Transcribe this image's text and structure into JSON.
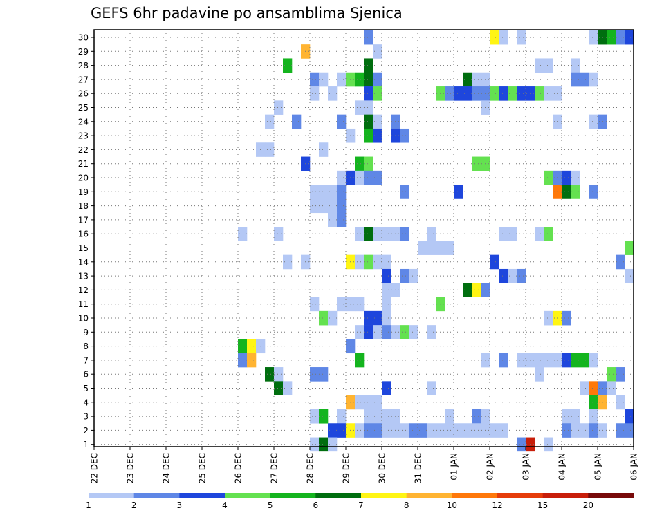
{
  "chart_data": {
    "type": "heatmap",
    "title": "GEFS 6hr padavine po ansamblima Sjenica",
    "xlabel": "",
    "ylabel": "",
    "x_tick_labels": [
      "22 DEC",
      "23 DEC",
      "24 DEC",
      "25 DEC",
      "26 DEC",
      "27 DEC",
      "28 DEC",
      "29 DEC",
      "30 DEC",
      "31 DEC",
      "01 JAN",
      "02 JAN",
      "03 JAN",
      "04 JAN",
      "05 JAN",
      "06 JAN"
    ],
    "y_tick_labels": [
      "1",
      "2",
      "3",
      "4",
      "5",
      "6",
      "7",
      "8",
      "9",
      "10",
      "11",
      "12",
      "13",
      "14",
      "15",
      "16",
      "17",
      "18",
      "19",
      "20",
      "21",
      "22",
      "23",
      "24",
      "25",
      "26",
      "27",
      "28",
      "29",
      "30"
    ],
    "x_range_days": [
      0,
      15
    ],
    "steps_per_day": 4,
    "members": 30,
    "grid": true,
    "legend_position": "bottom",
    "colorbar": {
      "labels": [
        "1",
        "2",
        "3",
        "4",
        "5",
        "6",
        "7",
        "8",
        "10",
        "12",
        "15",
        "20"
      ],
      "colors": [
        "#b4c8f5",
        "#5f87e6",
        "#1e46dc",
        "#64e150",
        "#14b41e",
        "#006e0f",
        "#fff514",
        "#ffb432",
        "#ff780a",
        "#e63c0a",
        "#c81e0a",
        "#780a0a"
      ]
    },
    "precip_cells": [
      {
        "member": 30,
        "cells": [
          [
            30,
            2
          ],
          [
            44,
            7
          ],
          [
            45,
            1
          ],
          [
            47,
            1
          ],
          [
            55,
            1
          ],
          [
            56,
            6
          ],
          [
            57,
            5
          ],
          [
            58,
            2
          ],
          [
            59,
            3
          ]
        ]
      },
      {
        "member": 29,
        "cells": [
          [
            23,
            8
          ],
          [
            31,
            1
          ]
        ]
      },
      {
        "member": 28,
        "cells": [
          [
            21,
            5
          ],
          [
            30,
            6
          ],
          [
            49,
            1
          ],
          [
            50,
            1
          ],
          [
            53,
            1
          ]
        ]
      },
      {
        "member": 27,
        "cells": [
          [
            24,
            2
          ],
          [
            25,
            1
          ],
          [
            27,
            1
          ],
          [
            28,
            4
          ],
          [
            29,
            5
          ],
          [
            30,
            6
          ],
          [
            31,
            2
          ],
          [
            41,
            6
          ],
          [
            42,
            1
          ],
          [
            43,
            1
          ],
          [
            53,
            2
          ],
          [
            54,
            2
          ],
          [
            55,
            1
          ]
        ]
      },
      {
        "member": 26,
        "cells": [
          [
            24,
            1
          ],
          [
            26,
            1
          ],
          [
            30,
            3
          ],
          [
            31,
            4
          ],
          [
            38,
            4
          ],
          [
            39,
            2
          ],
          [
            40,
            3
          ],
          [
            41,
            3
          ],
          [
            42,
            2
          ],
          [
            43,
            2
          ],
          [
            44,
            4
          ],
          [
            45,
            3
          ],
          [
            46,
            4
          ],
          [
            47,
            3
          ],
          [
            48,
            3
          ],
          [
            49,
            4
          ],
          [
            50,
            1
          ],
          [
            51,
            1
          ]
        ]
      },
      {
        "member": 25,
        "cells": [
          [
            20,
            1
          ],
          [
            29,
            1
          ],
          [
            30,
            1
          ],
          [
            43,
            1
          ]
        ]
      },
      {
        "member": 24,
        "cells": [
          [
            19,
            1
          ],
          [
            22,
            2
          ],
          [
            27,
            2
          ],
          [
            30,
            6
          ],
          [
            31,
            1
          ],
          [
            33,
            2
          ],
          [
            51,
            1
          ],
          [
            55,
            1
          ],
          [
            56,
            2
          ]
        ]
      },
      {
        "member": 23,
        "cells": [
          [
            28,
            1
          ],
          [
            30,
            5
          ],
          [
            31,
            3
          ],
          [
            33,
            3
          ],
          [
            34,
            2
          ]
        ]
      },
      {
        "member": 22,
        "cells": [
          [
            18,
            1
          ],
          [
            19,
            1
          ],
          [
            25,
            1
          ]
        ]
      },
      {
        "member": 21,
        "cells": [
          [
            23,
            3
          ],
          [
            29,
            5
          ],
          [
            30,
            4
          ],
          [
            42,
            4
          ],
          [
            43,
            4
          ]
        ]
      },
      {
        "member": 20,
        "cells": [
          [
            27,
            1
          ],
          [
            28,
            3
          ],
          [
            29,
            1
          ],
          [
            30,
            2
          ],
          [
            31,
            2
          ],
          [
            50,
            4
          ],
          [
            51,
            2
          ],
          [
            52,
            3
          ],
          [
            53,
            1
          ]
        ]
      },
      {
        "member": 19,
        "cells": [
          [
            24,
            1
          ],
          [
            25,
            1
          ],
          [
            26,
            1
          ],
          [
            27,
            2
          ],
          [
            34,
            2
          ],
          [
            40,
            3
          ],
          [
            51,
            9
          ],
          [
            52,
            6
          ],
          [
            53,
            4
          ],
          [
            55,
            2
          ]
        ]
      },
      {
        "member": 18,
        "cells": [
          [
            24,
            1
          ],
          [
            25,
            1
          ],
          [
            26,
            1
          ],
          [
            27,
            2
          ]
        ]
      },
      {
        "member": 17,
        "cells": [
          [
            26,
            1
          ],
          [
            27,
            2
          ]
        ]
      },
      {
        "member": 16,
        "cells": [
          [
            16,
            1
          ],
          [
            20,
            1
          ],
          [
            29,
            1
          ],
          [
            30,
            6
          ],
          [
            31,
            1
          ],
          [
            32,
            1
          ],
          [
            33,
            1
          ],
          [
            34,
            2
          ],
          [
            37,
            1
          ],
          [
            45,
            1
          ],
          [
            46,
            1
          ],
          [
            49,
            1
          ],
          [
            50,
            4
          ]
        ]
      },
      {
        "member": 15,
        "cells": [
          [
            36,
            1
          ],
          [
            37,
            1
          ],
          [
            38,
            1
          ],
          [
            39,
            1
          ],
          [
            59,
            4
          ]
        ]
      },
      {
        "member": 14,
        "cells": [
          [
            21,
            1
          ],
          [
            23,
            1
          ],
          [
            28,
            7
          ],
          [
            29,
            1
          ],
          [
            30,
            4
          ],
          [
            31,
            1
          ],
          [
            32,
            1
          ],
          [
            44,
            3
          ],
          [
            58,
            2
          ]
        ]
      },
      {
        "member": 13,
        "cells": [
          [
            32,
            3
          ],
          [
            34,
            2
          ],
          [
            35,
            1
          ],
          [
            45,
            3
          ],
          [
            46,
            1
          ],
          [
            47,
            2
          ],
          [
            59,
            1
          ]
        ]
      },
      {
        "member": 12,
        "cells": [
          [
            32,
            1
          ],
          [
            33,
            1
          ],
          [
            41,
            6
          ],
          [
            42,
            7
          ],
          [
            43,
            2
          ]
        ]
      },
      {
        "member": 11,
        "cells": [
          [
            24,
            1
          ],
          [
            27,
            1
          ],
          [
            28,
            1
          ],
          [
            29,
            1
          ],
          [
            32,
            1
          ],
          [
            38,
            4
          ]
        ]
      },
      {
        "member": 10,
        "cells": [
          [
            25,
            4
          ],
          [
            26,
            1
          ],
          [
            30,
            3
          ],
          [
            31,
            3
          ],
          [
            32,
            1
          ],
          [
            50,
            1
          ],
          [
            51,
            7
          ],
          [
            52,
            2
          ]
        ]
      },
      {
        "member": 9,
        "cells": [
          [
            29,
            1
          ],
          [
            30,
            3
          ],
          [
            31,
            1
          ],
          [
            32,
            2
          ],
          [
            33,
            1
          ],
          [
            34,
            4
          ],
          [
            35,
            1
          ],
          [
            37,
            1
          ]
        ]
      },
      {
        "member": 8,
        "cells": [
          [
            16,
            5
          ],
          [
            17,
            7
          ],
          [
            18,
            1
          ],
          [
            28,
            2
          ]
        ]
      },
      {
        "member": 7,
        "cells": [
          [
            16,
            2
          ],
          [
            17,
            8
          ],
          [
            29,
            5
          ],
          [
            43,
            1
          ],
          [
            45,
            2
          ],
          [
            47,
            1
          ],
          [
            48,
            1
          ],
          [
            49,
            1
          ],
          [
            50,
            1
          ],
          [
            51,
            1
          ],
          [
            52,
            3
          ],
          [
            53,
            5
          ],
          [
            54,
            5
          ],
          [
            55,
            1
          ]
        ]
      },
      {
        "member": 6,
        "cells": [
          [
            19,
            6
          ],
          [
            20,
            1
          ],
          [
            24,
            2
          ],
          [
            25,
            2
          ],
          [
            49,
            1
          ],
          [
            57,
            4
          ],
          [
            58,
            2
          ]
        ]
      },
      {
        "member": 5,
        "cells": [
          [
            20,
            6
          ],
          [
            21,
            1
          ],
          [
            32,
            3
          ],
          [
            37,
            1
          ],
          [
            54,
            1
          ],
          [
            55,
            9
          ],
          [
            56,
            2
          ],
          [
            57,
            1
          ]
        ]
      },
      {
        "member": 4,
        "cells": [
          [
            28,
            8
          ],
          [
            29,
            1
          ],
          [
            30,
            1
          ],
          [
            31,
            1
          ],
          [
            55,
            5
          ],
          [
            56,
            8
          ],
          [
            58,
            1
          ]
        ]
      },
      {
        "member": 3,
        "cells": [
          [
            24,
            1
          ],
          [
            25,
            5
          ],
          [
            27,
            1
          ],
          [
            30,
            1
          ],
          [
            31,
            1
          ],
          [
            32,
            1
          ],
          [
            33,
            1
          ],
          [
            39,
            1
          ],
          [
            42,
            2
          ],
          [
            43,
            1
          ],
          [
            52,
            1
          ],
          [
            53,
            1
          ],
          [
            55,
            1
          ],
          [
            59,
            3
          ]
        ]
      },
      {
        "member": 2,
        "cells": [
          [
            26,
            3
          ],
          [
            27,
            3
          ],
          [
            28,
            7
          ],
          [
            29,
            1
          ],
          [
            30,
            2
          ],
          [
            31,
            2
          ],
          [
            32,
            1
          ],
          [
            33,
            1
          ],
          [
            34,
            1
          ],
          [
            35,
            2
          ],
          [
            36,
            2
          ],
          [
            37,
            1
          ],
          [
            38,
            1
          ],
          [
            39,
            1
          ],
          [
            40,
            1
          ],
          [
            41,
            1
          ],
          [
            42,
            1
          ],
          [
            43,
            1
          ],
          [
            44,
            1
          ],
          [
            45,
            1
          ],
          [
            52,
            2
          ],
          [
            53,
            1
          ],
          [
            54,
            1
          ],
          [
            55,
            2
          ],
          [
            56,
            1
          ],
          [
            58,
            2
          ],
          [
            59,
            2
          ]
        ]
      },
      {
        "member": 1,
        "cells": [
          [
            24,
            1
          ],
          [
            25,
            6
          ],
          [
            26,
            1
          ],
          [
            47,
            2
          ],
          [
            48,
            11
          ],
          [
            50,
            1
          ]
        ]
      }
    ]
  }
}
